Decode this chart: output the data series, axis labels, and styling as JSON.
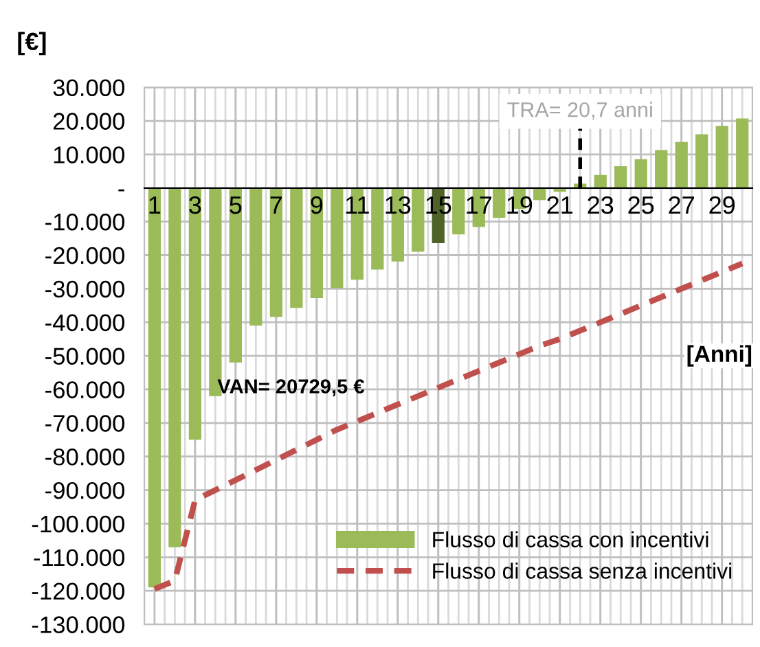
{
  "chart_data": {
    "type": "bar",
    "xlabel": "[Anni]",
    "ylabel": "[€]",
    "x": [
      1,
      2,
      3,
      4,
      5,
      6,
      7,
      8,
      9,
      10,
      11,
      12,
      13,
      14,
      15,
      16,
      17,
      18,
      19,
      20,
      21,
      22,
      23,
      24,
      25,
      26,
      27,
      28,
      29,
      30
    ],
    "xlim": [
      0.5,
      30.5
    ],
    "xticks": [
      1,
      3,
      5,
      7,
      9,
      11,
      13,
      15,
      17,
      19,
      21,
      23,
      25,
      27,
      29
    ],
    "ylim": [
      -130000,
      30000
    ],
    "yticks": [
      {
        "value": 30000,
        "label": "30.000"
      },
      {
        "value": 20000,
        "label": "20.000"
      },
      {
        "value": 10000,
        "label": "10.000"
      },
      {
        "value": 0,
        "label": "-"
      },
      {
        "value": -10000,
        "label": "-10.000"
      },
      {
        "value": -20000,
        "label": "-20.000"
      },
      {
        "value": -30000,
        "label": "-30.000"
      },
      {
        "value": -40000,
        "label": "-40.000"
      },
      {
        "value": -50000,
        "label": "-50.000"
      },
      {
        "value": -60000,
        "label": "-60.000"
      },
      {
        "value": -70000,
        "label": "-70.000"
      },
      {
        "value": -80000,
        "label": "-80.000"
      },
      {
        "value": -90000,
        "label": "-90.000"
      },
      {
        "value": -100000,
        "label": "-100.000"
      },
      {
        "value": -110000,
        "label": "-110.000"
      },
      {
        "value": -120000,
        "label": "-120.000"
      },
      {
        "value": -130000,
        "label": "-130.000"
      }
    ],
    "series": [
      {
        "name": "Flusso di cassa con incentivi",
        "type": "bar",
        "color": "#9bbb59",
        "colors": [
          "#9bbb59",
          "#9bbb59",
          "#9bbb59",
          "#9bbb59",
          "#9bbb59",
          "#9bbb59",
          "#9bbb59",
          "#9bbb59",
          "#9bbb59",
          "#9bbb59",
          "#9bbb59",
          "#9bbb59",
          "#9bbb59",
          "#9bbb59",
          "#4f6228",
          "#9bbb59",
          "#9bbb59",
          "#9bbb59",
          "#9bbb59",
          "#9bbb59",
          "#9bbb59",
          "#9bbb59",
          "#9bbb59",
          "#9bbb59",
          "#9bbb59",
          "#9bbb59",
          "#9bbb59",
          "#9bbb59",
          "#9bbb59",
          "#9bbb59"
        ],
        "values": [
          -119000,
          -107000,
          -75000,
          -62000,
          -52000,
          -41000,
          -38400,
          -35700,
          -32800,
          -29800,
          -27300,
          -24300,
          -21900,
          -19000,
          -16400,
          -13800,
          -11600,
          -8900,
          -6200,
          -3600,
          -1100,
          1300,
          3900,
          6500,
          8600,
          11300,
          13700,
          16000,
          18500,
          20700
        ]
      },
      {
        "name": "Flusso di cassa senza incentivi",
        "type": "line",
        "color": "#c0504d",
        "line_style": "dashed",
        "values": [
          -119500,
          -117000,
          -93000,
          -90000,
          -87000,
          -84000,
          -81000,
          -78000,
          -75000,
          -72000,
          -69500,
          -67000,
          -64500,
          -62000,
          -59500,
          -57000,
          -54500,
          -52000,
          -49500,
          -47000,
          -45000,
          -42500,
          -40000,
          -37500,
          -35000,
          -32500,
          -30000,
          -27500,
          -25000,
          -22500
        ]
      }
    ],
    "ref_lines": [
      {
        "axis": "x",
        "value": 22,
        "color": "#000000",
        "line_style": "dashed"
      }
    ],
    "annotations": [
      "VAN= 20729,5 €",
      "TRA= 20,7 anni"
    ],
    "grid": true,
    "legend": "bottom right",
    "marker": "none"
  }
}
